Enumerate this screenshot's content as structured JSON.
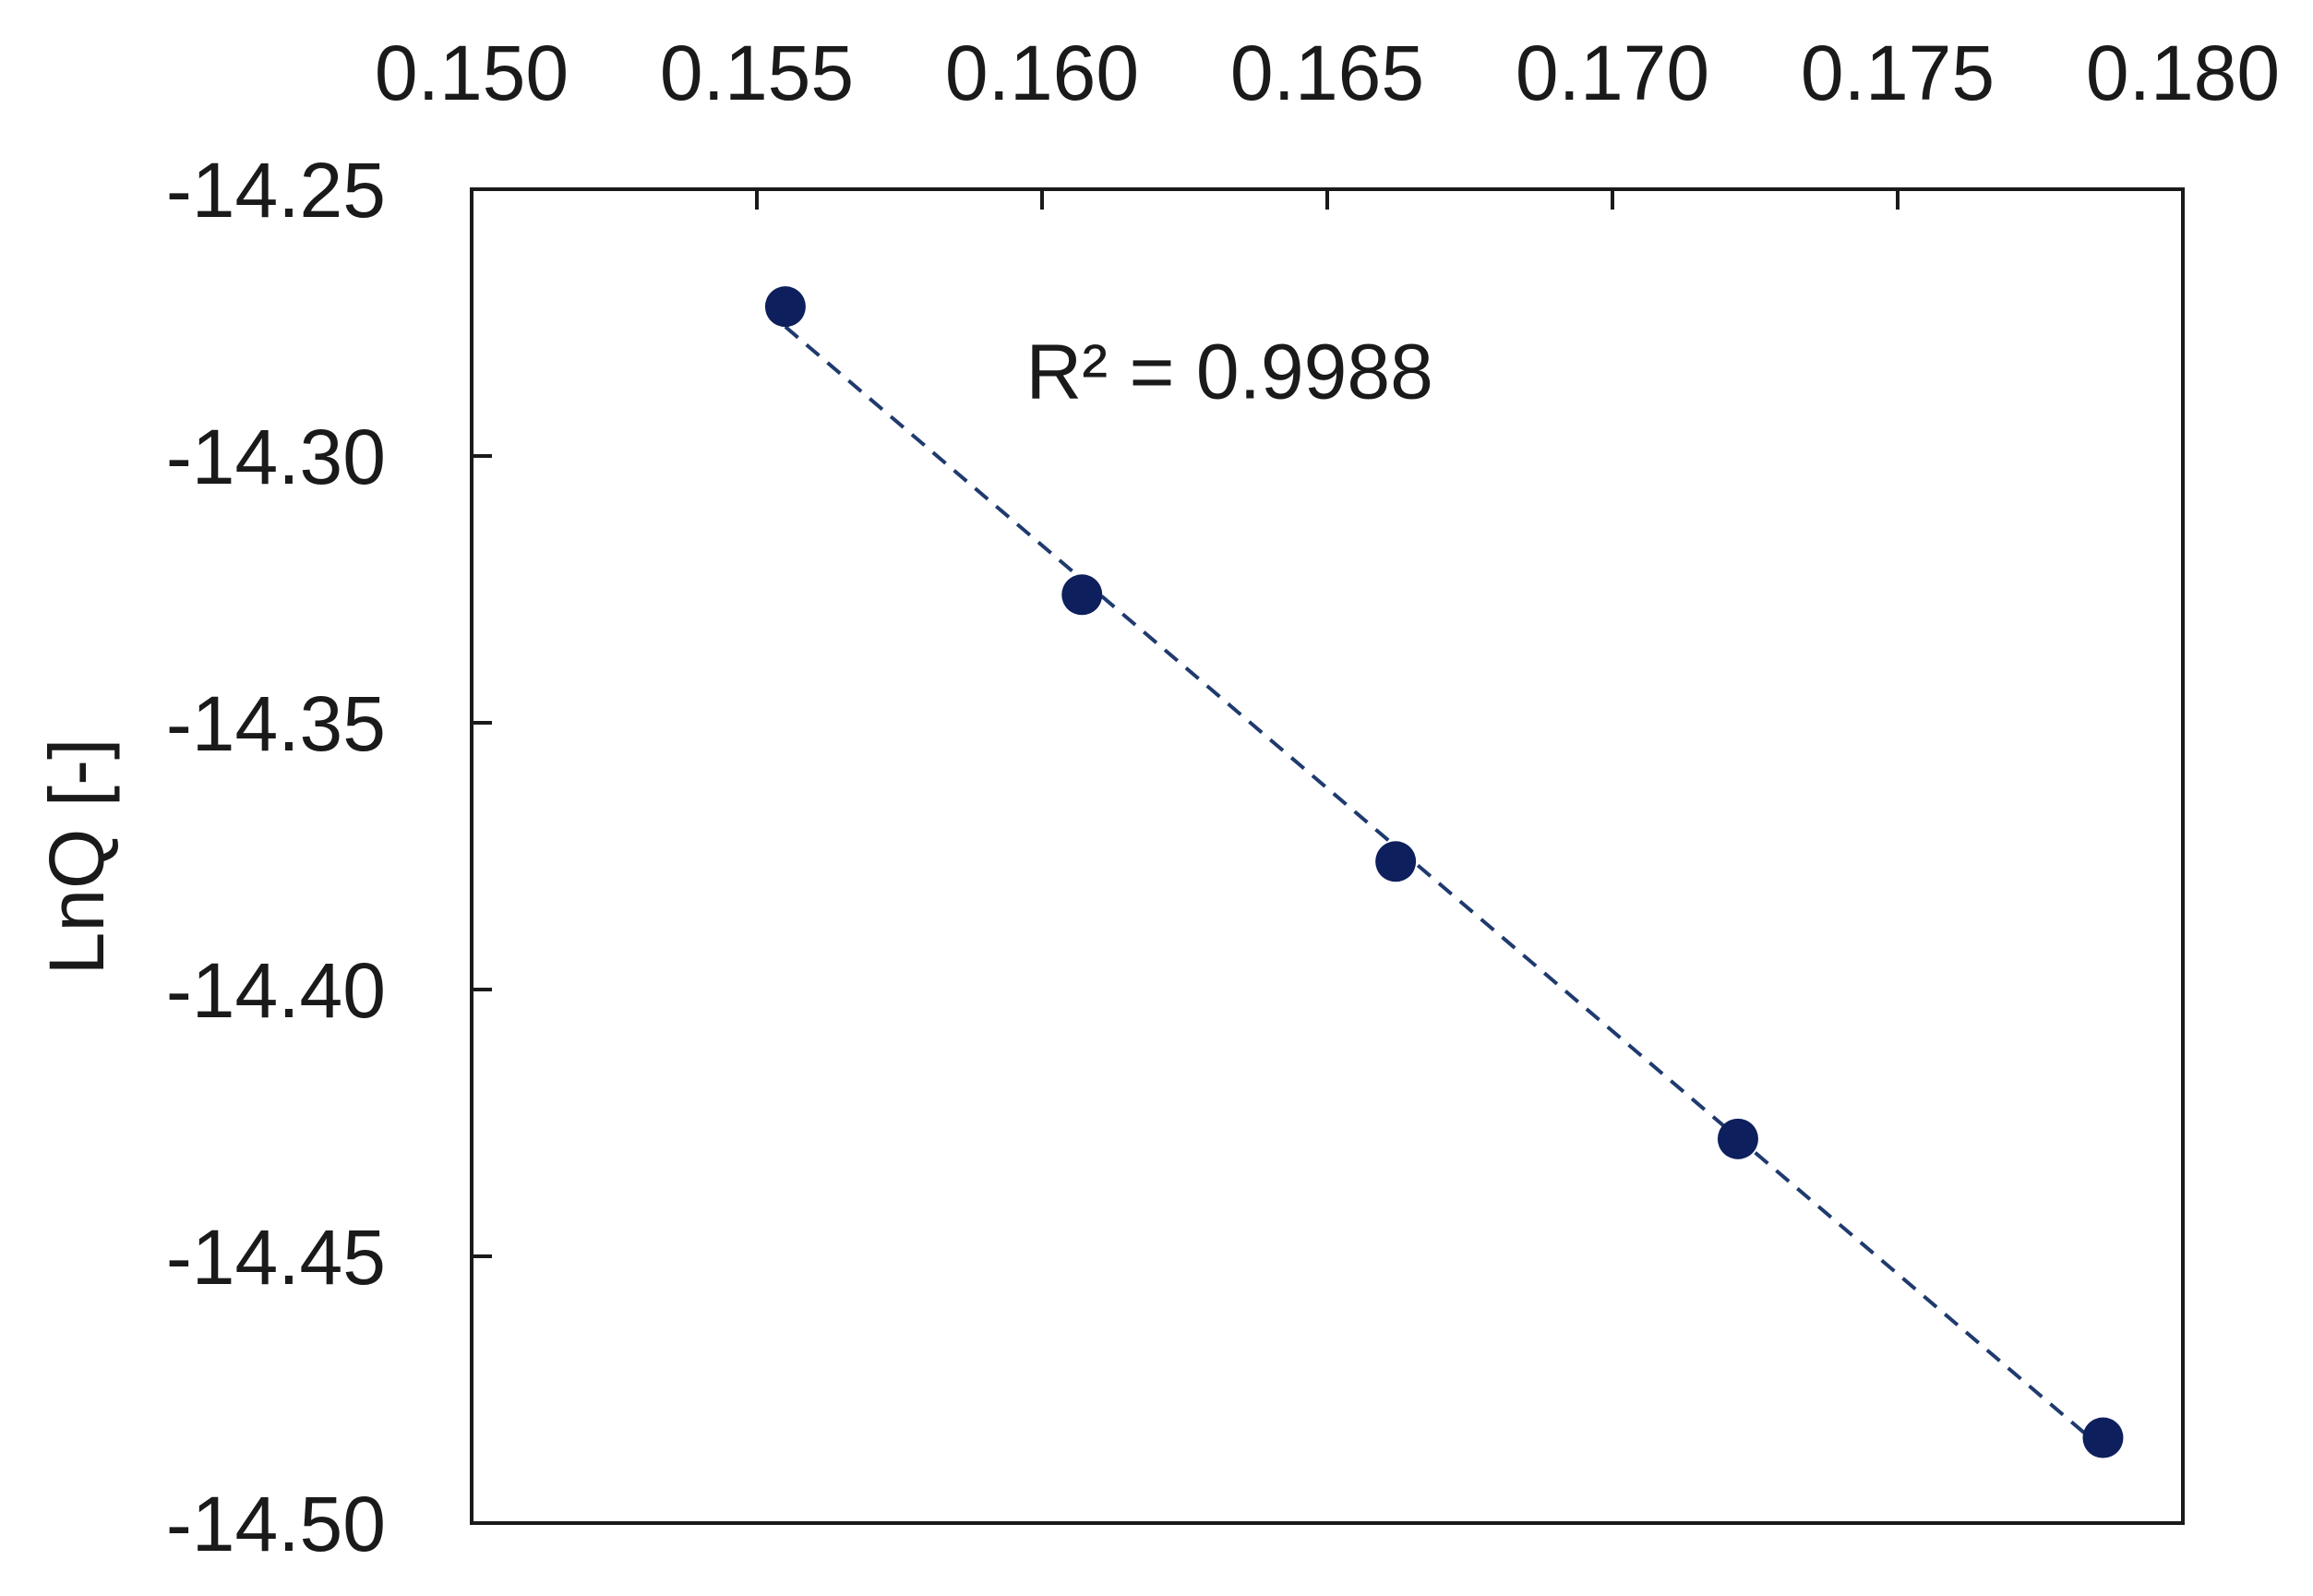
{
  "chart_data": {
    "type": "scatter",
    "title": "",
    "xlabel": "",
    "ylabel": "LnQ [-]",
    "xlim": [
      0.15,
      0.18
    ],
    "ylim": [
      -14.5,
      -14.25
    ],
    "x_ticks": [
      "0.150",
      "0.155",
      "0.160",
      "0.165",
      "0.170",
      "0.175",
      "0.180"
    ],
    "y_ticks": [
      "-14.25",
      "-14.30",
      "-14.35",
      "-14.40",
      "-14.45",
      "-14.50"
    ],
    "x_axis_position": "top",
    "grid": false,
    "legend": "none",
    "series": [
      {
        "x": [
          0.1555,
          0.1607,
          0.1662,
          0.1722,
          0.1786
        ],
        "y": [
          -14.272,
          -14.326,
          -14.376,
          -14.428,
          -14.484
        ],
        "color": "#0d1f5c",
        "marker": "circle",
        "trendline": {
          "type": "linear",
          "style": "dashed",
          "color": "#1f3a6e"
        }
      }
    ],
    "annotations": [
      {
        "text": "R² = 0.9988",
        "x": 0.1625,
        "y": -14.284
      }
    ]
  },
  "colors": {
    "marker": "#0d1f5c",
    "trendline": "#1f3a6e",
    "axis": "#1a1a1a",
    "background": "#ffffff"
  }
}
